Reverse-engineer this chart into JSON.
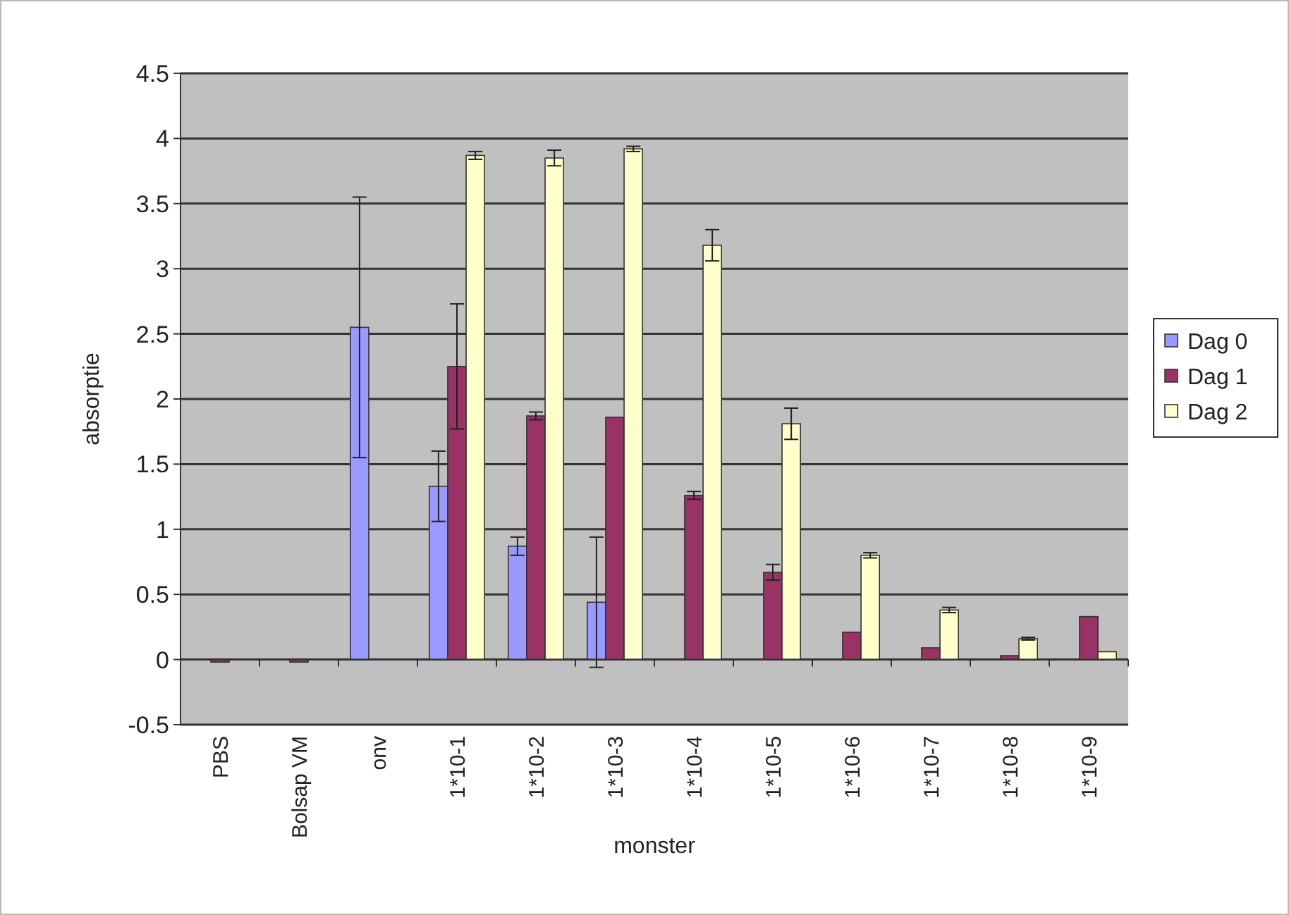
{
  "chart_data": {
    "type": "bar",
    "xlabel": "monster",
    "ylabel": "absorptie",
    "categories": [
      "PBS",
      "Bolsap VM",
      "onv",
      "1*10-1",
      "1*10-2",
      "1*10-3",
      "1*10-4",
      "1*10-5",
      "1*10-6",
      "1*10-7",
      "1*10-8",
      "1*10-9"
    ],
    "series": [
      {
        "name": "Dag 0",
        "color": "#9999ff",
        "values": [
          null,
          null,
          2.55,
          1.33,
          0.87,
          0.44,
          null,
          null,
          null,
          null,
          null,
          null
        ],
        "errors": [
          null,
          null,
          1.0,
          0.27,
          0.07,
          0.5,
          null,
          null,
          null,
          null,
          null,
          null
        ]
      },
      {
        "name": "Dag 1",
        "color": "#993366",
        "values": [
          -0.02,
          -0.02,
          null,
          2.25,
          1.87,
          1.86,
          1.26,
          0.67,
          0.21,
          0.09,
          0.03,
          0.33
        ],
        "errors": [
          null,
          null,
          null,
          0.48,
          0.03,
          null,
          0.03,
          0.06,
          null,
          null,
          null,
          null
        ]
      },
      {
        "name": "Dag 2",
        "color": "#ffffcc",
        "values": [
          null,
          null,
          null,
          3.87,
          3.85,
          3.92,
          3.18,
          1.81,
          0.8,
          0.38,
          0.16,
          0.06
        ],
        "errors": [
          null,
          null,
          null,
          0.03,
          0.06,
          0.02,
          0.12,
          0.12,
          0.02,
          0.02,
          0.01,
          null
        ]
      }
    ],
    "ylim": [
      -0.5,
      4.5
    ],
    "yticks": [
      -0.5,
      0,
      0.5,
      1,
      1.5,
      2,
      2.5,
      3,
      3.5,
      4,
      4.5
    ],
    "grid": "y",
    "legend": "right"
  }
}
